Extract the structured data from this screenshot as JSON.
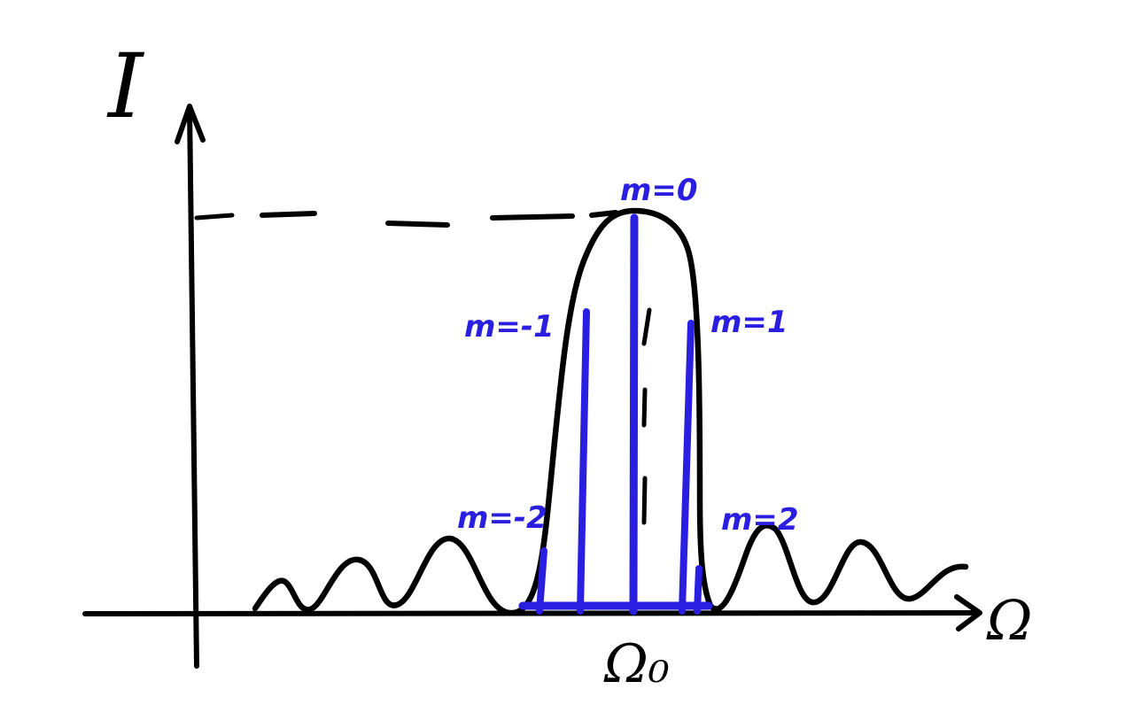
{
  "diagram": {
    "y_axis_label": "I",
    "x_axis_label": "Ω",
    "center_label": "Ω₀",
    "orders": [
      {
        "label": "m=0"
      },
      {
        "label": "m=-1"
      },
      {
        "label": "m=1"
      },
      {
        "label": "m=-2"
      },
      {
        "label": "m=2"
      }
    ]
  },
  "colors": {
    "ink": "#000000",
    "orders": "#2a1fe0"
  }
}
